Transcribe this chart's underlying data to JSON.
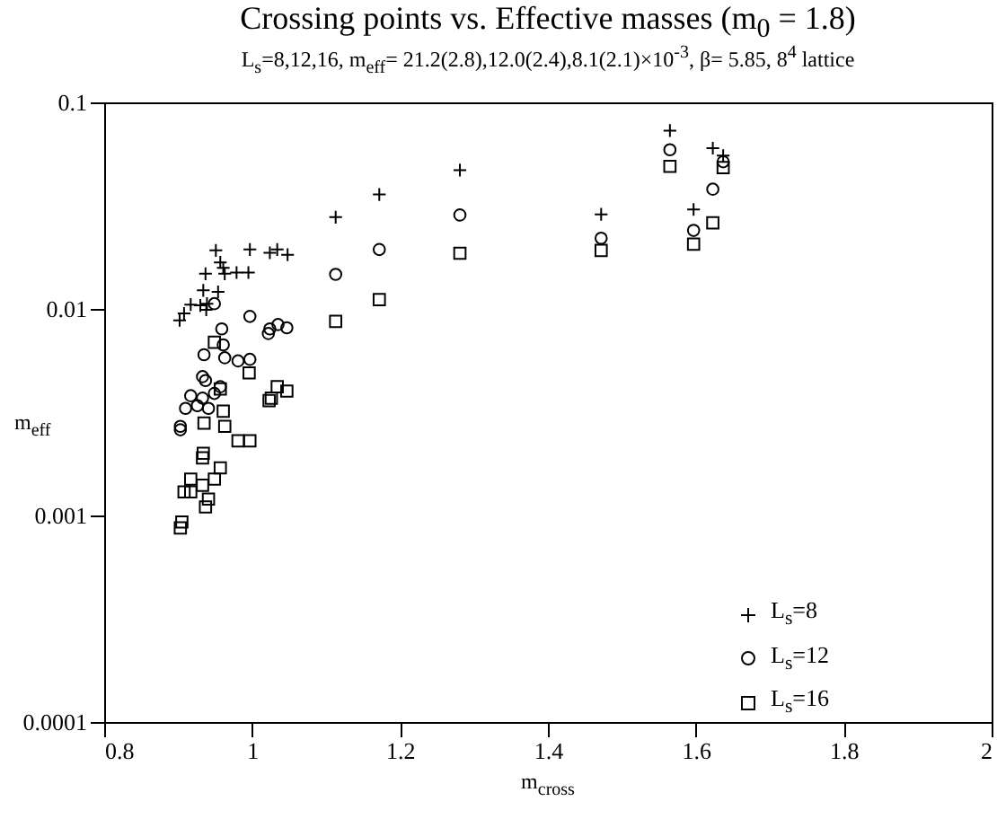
{
  "chart_data": {
    "type": "scatter",
    "title": "Crossing points vs. Effective masses (m$_{0}$ = 1.8)",
    "subtitle": "L$_{s}$=8,12,16, m$_{eff}$= 21.2(2.8),12.0(2.4),8.1(2.1)×10$^{-3}$, β= 5.85, 8$^{4}$ lattice",
    "xlabel": "m$_{cross}$",
    "ylabel": "m$_{eff}$",
    "xlim": [
      0.8,
      2
    ],
    "xticks": [
      0.8,
      1,
      1.2,
      1.4,
      1.6,
      1.8,
      2
    ],
    "ylim": [
      0.0001,
      0.1
    ],
    "yticks": [
      0.0001,
      0.001,
      0.01,
      0.1
    ],
    "log": "y",
    "legend": "bottom right",
    "series": [
      {
        "name": "L$_{s}$=8",
        "color": "#000000",
        "marker": "cross",
        "x": [
          0.951,
          0.997,
          1.024,
          1.034,
          1.048,
          0.957,
          0.937,
          0.963,
          0.979,
          0.995,
          0.961,
          0.934,
          0.954,
          0.939,
          0.917,
          0.938,
          0.908,
          0.902,
          0.93,
          1.113,
          1.172,
          1.281,
          1.472,
          1.565,
          1.597,
          1.623,
          1.637
        ],
        "values": [
          0.0192,
          0.0194,
          0.0187,
          0.0194,
          0.0183,
          0.0168,
          0.0148,
          0.0148,
          0.015,
          0.015,
          0.0158,
          0.0123,
          0.0121,
          0.0106,
          0.0105,
          0.0099,
          0.0095,
          0.0088,
          0.0104,
          0.0278,
          0.0358,
          0.047,
          0.0287,
          0.073,
          0.0303,
          0.06,
          0.0552
        ]
      },
      {
        "name": "L$_{s}$=12",
        "color": "#000000",
        "marker": "circle",
        "x": [
          0.949,
          0.997,
          0.959,
          1.024,
          1.035,
          1.047,
          1.022,
          0.961,
          0.935,
          0.963,
          0.981,
          0.997,
          0.933,
          0.937,
          0.917,
          0.933,
          0.949,
          0.957,
          0.91,
          0.926,
          0.941,
          0.903,
          0.903,
          1.113,
          1.172,
          1.281,
          1.472,
          1.565,
          1.597,
          1.623,
          1.637
        ],
        "values": [
          0.0106,
          0.0092,
          0.008,
          0.008,
          0.0084,
          0.0081,
          0.0076,
          0.0067,
          0.006,
          0.0058,
          0.0056,
          0.0057,
          0.0047,
          0.0045,
          0.0038,
          0.0037,
          0.0039,
          0.0042,
          0.0033,
          0.0034,
          0.0033,
          0.0027,
          0.0026,
          0.0147,
          0.0194,
          0.0285,
          0.022,
          0.059,
          0.024,
          0.038,
          0.0516
        ]
      },
      {
        "name": "L$_{s}$=16",
        "color": "#000000",
        "marker": "square",
        "x": [
          0.949,
          0.996,
          0.957,
          1.034,
          1.047,
          1.026,
          1.023,
          0.961,
          0.935,
          0.963,
          0.981,
          0.997,
          0.934,
          0.933,
          0.957,
          0.917,
          0.949,
          0.933,
          0.908,
          0.917,
          0.941,
          0.937,
          0.905,
          0.903,
          1.113,
          1.172,
          1.281,
          1.472,
          1.565,
          1.597,
          1.623,
          1.637
        ],
        "values": [
          0.0069,
          0.0049,
          0.0041,
          0.0042,
          0.004,
          0.0037,
          0.0036,
          0.0032,
          0.0028,
          0.0027,
          0.0023,
          0.0023,
          0.002,
          0.0019,
          0.0017,
          0.0015,
          0.0015,
          0.0014,
          0.0013,
          0.0013,
          0.0012,
          0.0011,
          0.00093,
          0.00087,
          0.0087,
          0.0111,
          0.0186,
          0.0192,
          0.049,
          0.0206,
          0.0261,
          0.0483
        ]
      }
    ]
  }
}
